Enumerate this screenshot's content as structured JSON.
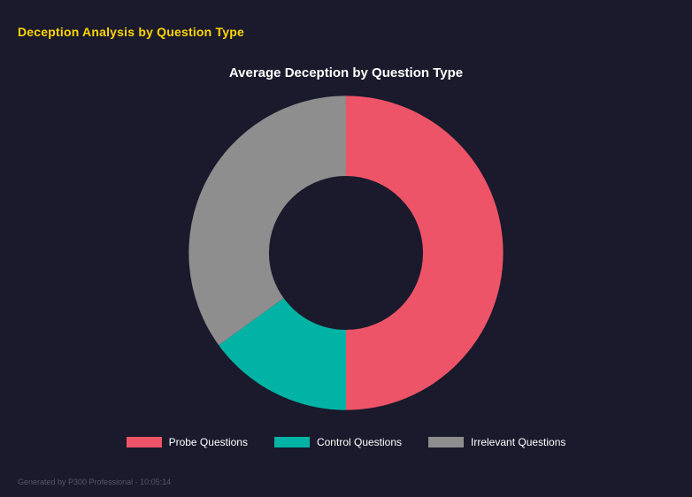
{
  "page": {
    "title": "Deception Analysis by Question Type",
    "title_color": "#ffd400",
    "background_color": "#1a1a2c",
    "footer": "Generated by P300 Professional - 10:05:14"
  },
  "chart_data": {
    "type": "pie",
    "variant": "donut",
    "title": "Average Deception by Question Type",
    "categories": [
      "Probe Questions",
      "Control Questions",
      "Irrelevant Questions"
    ],
    "values": [
      50,
      15,
      35
    ],
    "unit": "percent",
    "colors": [
      "#ee5468",
      "#00b3a4",
      "#8e8e8e"
    ],
    "start_angle_deg": 0,
    "direction": "clockwise",
    "inner_radius_ratio": 0.49,
    "legend_position": "bottom",
    "grid": false
  }
}
